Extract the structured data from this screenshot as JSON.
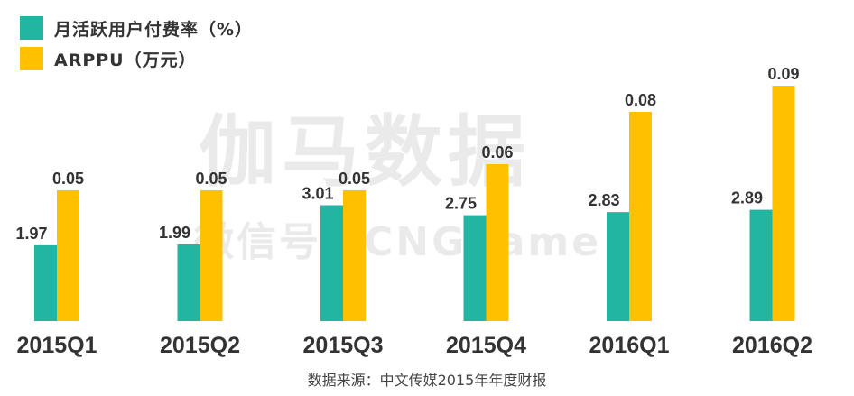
{
  "watermark": {
    "main": "伽马数据",
    "sub": "微信号：CNGgame"
  },
  "source": "数据来源：中文传媒2015年年度财报",
  "colors": {
    "series1": "#22b5a2",
    "series2": "#ffc000",
    "text": "#333333"
  },
  "chart_data": {
    "type": "bar",
    "categories": [
      "2015Q1",
      "2015Q2",
      "2015Q3",
      "2015Q4",
      "2016Q1",
      "2016Q2"
    ],
    "series": [
      {
        "name": "月活跃用户付费率（%）",
        "values": [
          1.97,
          1.99,
          3.01,
          2.75,
          2.83,
          2.89
        ],
        "labels": [
          "1.97",
          "1.99",
          "3.01",
          "2.75",
          "2.83",
          "2.89"
        ]
      },
      {
        "name": "ARPPU（万元）",
        "values": [
          0.05,
          0.05,
          0.05,
          0.06,
          0.08,
          0.09
        ],
        "labels": [
          "0.05",
          "0.05",
          "0.05",
          "0.06",
          "0.08",
          "0.09"
        ]
      }
    ],
    "legend_position": "top-left",
    "grid": false,
    "dual_axis": true
  }
}
